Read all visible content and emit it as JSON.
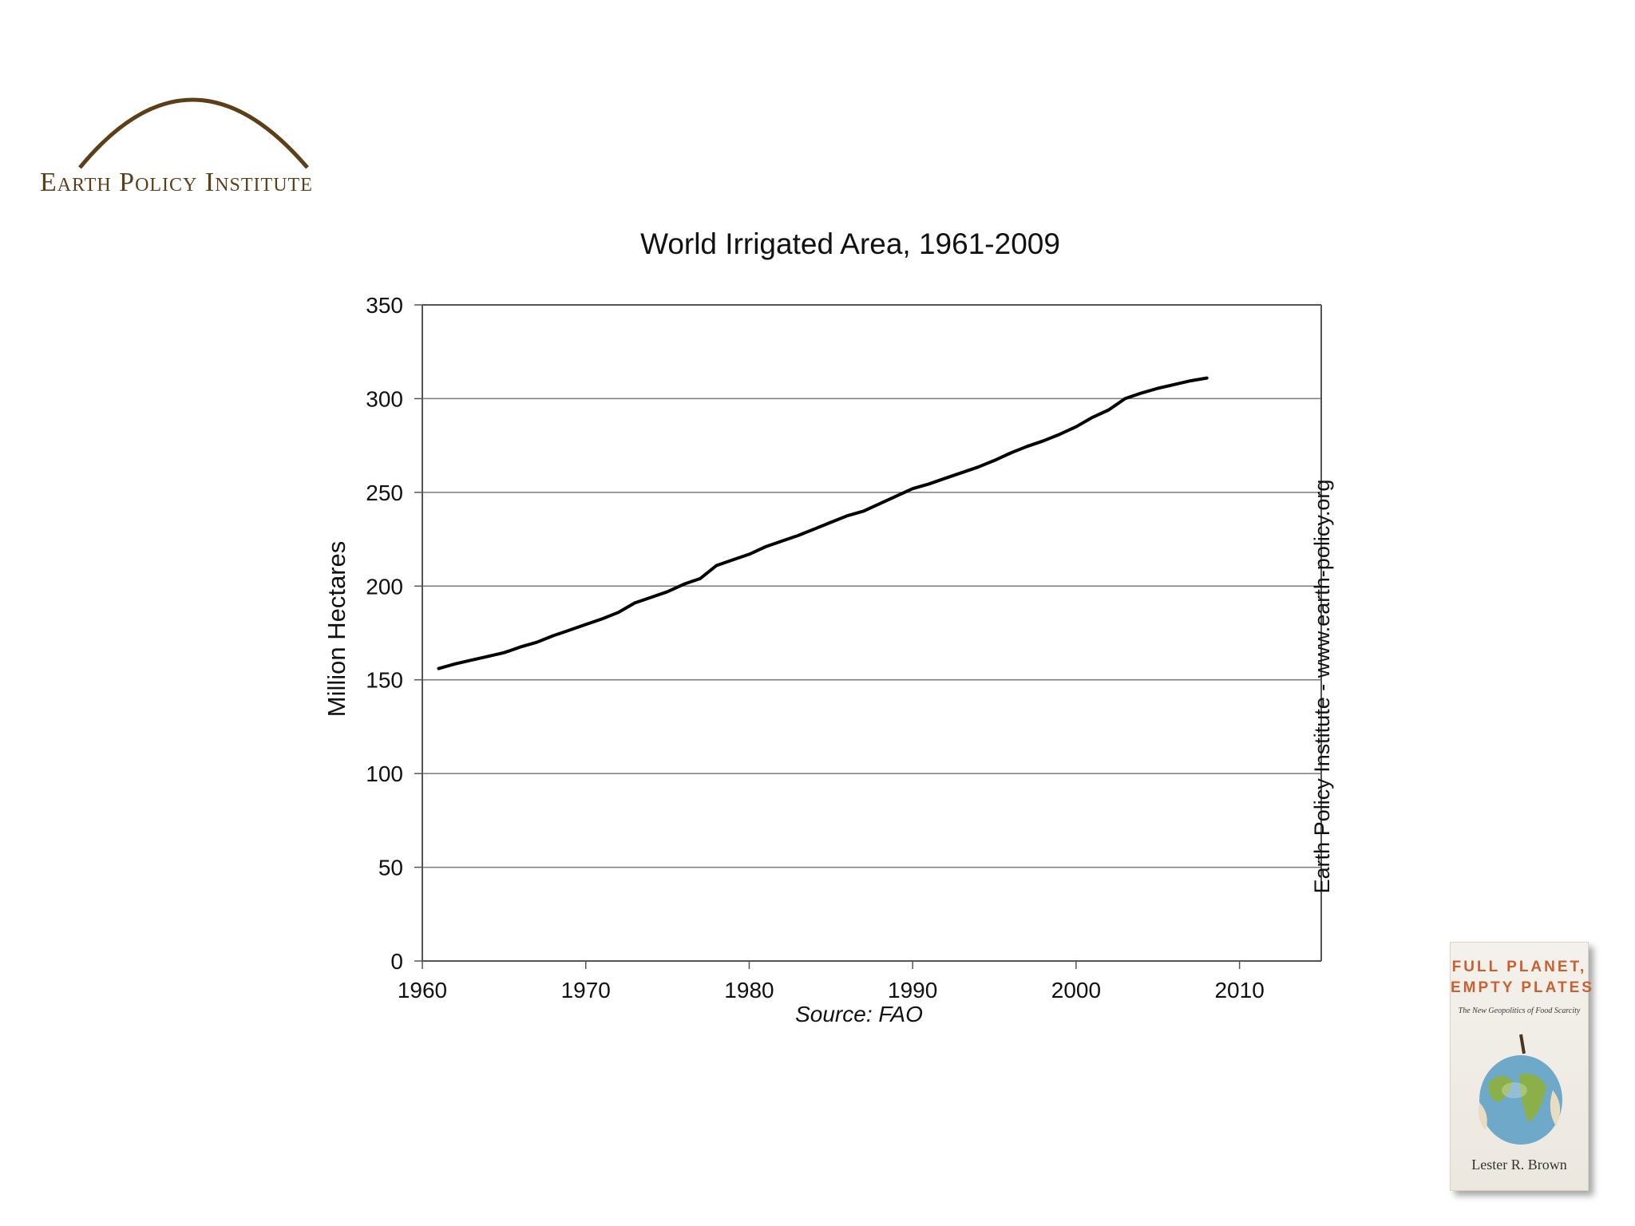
{
  "logo": {
    "text": "Earth Policy Institute",
    "arc_color": "#5c3f19"
  },
  "chart_data": {
    "type": "line",
    "title": "World Irrigated Area, 1961-2009",
    "ylabel": "Million Hectares",
    "xlabel": "",
    "source": "Source: FAO",
    "side_note": "Earth Policy Institute - www.earth-policy.org",
    "xlim": [
      1960,
      2015
    ],
    "ylim": [
      0,
      350
    ],
    "x_ticks": [
      1960,
      1970,
      1980,
      1990,
      2000,
      2010
    ],
    "y_ticks": [
      0,
      50,
      100,
      150,
      200,
      250,
      300,
      350
    ],
    "grid": true,
    "line_color": "#000000",
    "series": [
      {
        "x": [
          1961,
          1962,
          1963,
          1964,
          1965,
          1966,
          1967,
          1968,
          1969,
          1970,
          1971,
          1972,
          1973,
          1974,
          1975,
          1976,
          1977,
          1978,
          1979,
          1980,
          1981,
          1982,
          1983,
          1984,
          1985,
          1986,
          1987,
          1988,
          1989,
          1990,
          1991,
          1992,
          1993,
          1994,
          1995,
          1996,
          1997,
          1998,
          1999,
          2000,
          2001,
          2002,
          2003,
          2004,
          2005,
          2006,
          2007,
          2008
        ],
        "y": [
          156,
          158.5,
          160.5,
          162.5,
          164.5,
          167.5,
          170,
          173.5,
          176.5,
          179.5,
          182.5,
          186,
          191,
          194,
          197,
          201,
          204,
          211,
          214,
          217,
          221,
          224,
          227,
          230.5,
          234,
          237.5,
          240,
          244,
          248,
          252,
          254.5,
          257.5,
          260.5,
          263.5,
          267,
          271,
          274.5,
          277.5,
          281,
          285,
          290,
          294,
          300,
          303,
          305.5,
          307.5,
          309.5,
          311
        ]
      }
    ]
  },
  "book": {
    "title_line1": "FULL PLANET,",
    "title_line2": "EMPTY PLATES",
    "subtitle": "The New Geopolitics of Food Scarcity",
    "author": "Lester R. Brown"
  }
}
